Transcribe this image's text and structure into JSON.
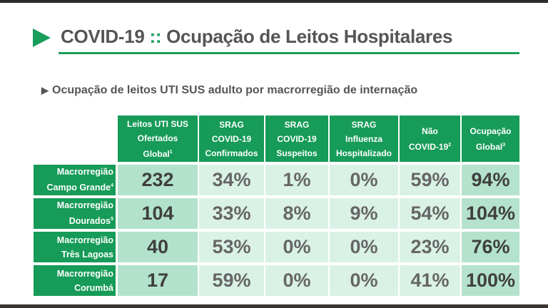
{
  "title": {
    "main": "COVID-19",
    "separator": "::",
    "rest": "Ocupação de Leitos Hospitalares"
  },
  "subtitle": "Ocupação de leitos UTI SUS adulto por macrorregião de internação",
  "colors": {
    "brand_green": "#169b58",
    "cell_light": "#daf2e6",
    "cell_dark": "#b2e2cc"
  },
  "table": {
    "headers": [
      {
        "lines": [
          "Leitos UTI SUS",
          "Ofertados",
          "Global"
        ],
        "sup": "1"
      },
      {
        "lines": [
          "SRAG",
          "COVID-19",
          "Confirmados"
        ],
        "sup": ""
      },
      {
        "lines": [
          "SRAG",
          "COVID-19",
          "Suspeitos"
        ],
        "sup": ""
      },
      {
        "lines": [
          "SRAG",
          "Influenza",
          "Hospitalizado"
        ],
        "sup": ""
      },
      {
        "lines": [
          "Não",
          "COVID-19"
        ],
        "sup": "2"
      },
      {
        "lines": [
          "Ocupação",
          "Global"
        ],
        "sup": "3"
      }
    ],
    "rows": [
      {
        "line1": "Macrorregião",
        "line2": "Campo Grande",
        "sup": "4",
        "values": [
          "232",
          "34%",
          "1%",
          "0%",
          "59%",
          "94%"
        ]
      },
      {
        "line1": "Macrorregião",
        "line2": "Dourados",
        "sup": "5",
        "values": [
          "104",
          "33%",
          "8%",
          "9%",
          "54%",
          "104%"
        ]
      },
      {
        "line1": "Macrorregião",
        "line2": "Três Lagoas",
        "sup": "",
        "values": [
          "40",
          "53%",
          "0%",
          "0%",
          "23%",
          "76%"
        ]
      },
      {
        "line1": "Macrorregião",
        "line2": "Corumbá",
        "sup": "",
        "values": [
          "17",
          "59%",
          "0%",
          "0%",
          "41%",
          "100%"
        ]
      }
    ]
  }
}
